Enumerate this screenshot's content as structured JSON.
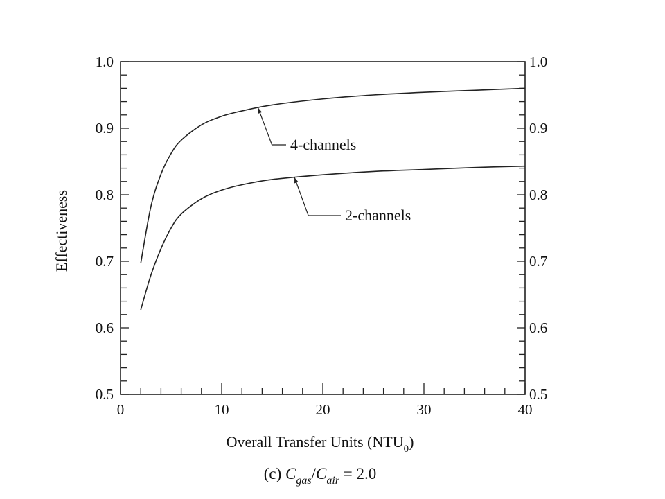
{
  "chart_data": {
    "type": "line",
    "xlabel": {
      "main": "Overall Transfer Units (NTU",
      "sub": "0",
      "close": ")"
    },
    "ylabel": "Effectiveness",
    "caption": {
      "prefix": "(c) ",
      "c1": "C",
      "s1": "gas",
      "slash": "/",
      "c2": "C",
      "s2": "air",
      "suffix": " = 2.0"
    },
    "xlim": [
      0,
      40
    ],
    "ylim": [
      0.5,
      1.0
    ],
    "xticks": [
      0,
      10,
      20,
      30,
      40
    ],
    "yticks": [
      0.5,
      0.6,
      0.7,
      0.8,
      0.9,
      1.0
    ],
    "xtick_labels": [
      "0",
      "10",
      "20",
      "30",
      "40"
    ],
    "ytick_labels": [
      "0.5",
      "0.6",
      "0.7",
      "0.8",
      "0.9",
      "1.0"
    ],
    "grid": false,
    "series": [
      {
        "name": "4-channels",
        "x": [
          2,
          3,
          4,
          5,
          6,
          8,
          10,
          12,
          15,
          20,
          25,
          30,
          35,
          40
        ],
        "y": [
          0.697,
          0.782,
          0.831,
          0.862,
          0.882,
          0.905,
          0.918,
          0.926,
          0.935,
          0.944,
          0.95,
          0.954,
          0.957,
          0.96
        ]
      },
      {
        "name": "2-channels",
        "x": [
          2,
          3,
          4,
          5,
          6,
          8,
          10,
          12,
          15,
          20,
          25,
          30,
          35,
          40
        ],
        "y": [
          0.627,
          0.679,
          0.719,
          0.75,
          0.771,
          0.794,
          0.807,
          0.815,
          0.823,
          0.83,
          0.835,
          0.838,
          0.841,
          0.843
        ]
      }
    ]
  }
}
